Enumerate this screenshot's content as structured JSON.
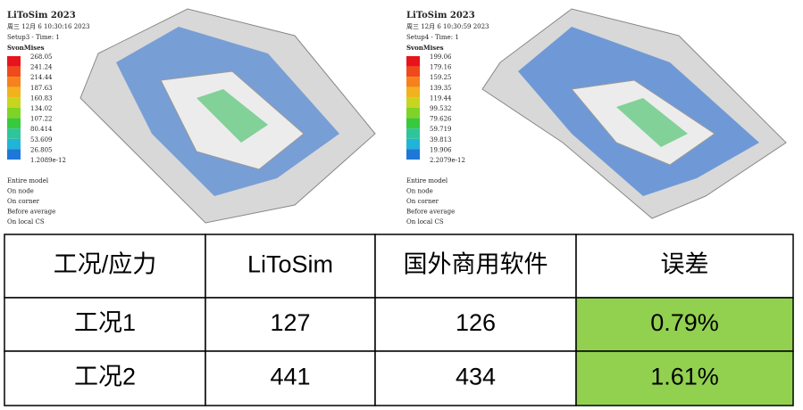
{
  "panels": [
    {
      "app": "LiToSim 2023",
      "date": "周三 12月 6 10:30:16 2023",
      "setup": "Setup3 -   Time: 1",
      "result": "SvonMises",
      "legend": [
        "268.05",
        "241.24",
        "214.44",
        "187.63",
        "160.83",
        "134.02",
        "107.22",
        "80.414",
        "53.609",
        "26.805",
        "1.2089e-12"
      ],
      "notes": [
        "Entire model",
        "On node",
        "On corner",
        "Before average",
        "On local CS"
      ]
    },
    {
      "app": "LiToSim 2023",
      "date": "周三 12月 6 10:30:59 2023",
      "setup": "Setup4 -   Time: 1",
      "result": "SvonMises",
      "legend": [
        "199.06",
        "179.16",
        "159.25",
        "139.35",
        "119.44",
        "99.532",
        "79.626",
        "59.719",
        "39.813",
        "19.906",
        "2.2079e-12"
      ],
      "notes": [
        "Entire model",
        "On node",
        "On corner",
        "Before average",
        "On local CS"
      ]
    }
  ],
  "table": {
    "header": [
      "工况/应力",
      "LiToSim",
      "国外商用软件",
      "误差"
    ],
    "rows": [
      [
        "工况1",
        "127",
        "126",
        "0.79%"
      ],
      [
        "工况2",
        "441",
        "434",
        "1.61%"
      ]
    ]
  }
}
